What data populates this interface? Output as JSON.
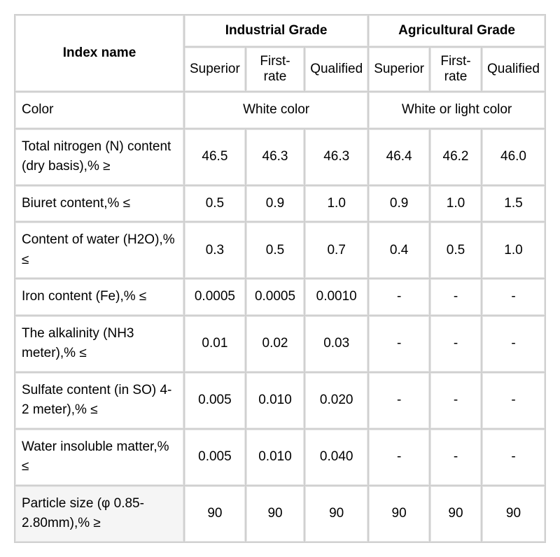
{
  "table": {
    "headers": {
      "indexName": "Index name",
      "industrialGrade": "Industrial Grade",
      "agriculturalGrade": "Agricultural Grade"
    },
    "subheaders": {
      "superior": "Superior",
      "firstRate": "First-rate",
      "qualified": "Qualified"
    },
    "rows": {
      "color": {
        "label": "Color",
        "industrial": "White color",
        "agricultural": "White or light color"
      },
      "nitrogen": {
        "label": "Total nitrogen (N) content (dry basis),% ≥",
        "values": [
          "46.5",
          "46.3",
          "46.3",
          "46.4",
          "46.2",
          "46.0"
        ]
      },
      "biuret": {
        "label": "Biuret content,% ≤",
        "values": [
          "0.5",
          "0.9",
          "1.0",
          "0.9",
          "1.0",
          "1.5"
        ]
      },
      "water": {
        "label": "Content of water (H2O),% ≤",
        "values": [
          "0.3",
          "0.5",
          "0.7",
          "0.4",
          "0.5",
          "1.0"
        ]
      },
      "iron": {
        "label": "Iron content (Fe),% ≤",
        "values": [
          "0.0005",
          "0.0005",
          "0.0010",
          "-",
          "-",
          "-"
        ]
      },
      "alkalinity": {
        "label": "The alkalinity (NH3 meter),% ≤",
        "values": [
          "0.01",
          "0.02",
          "0.03",
          "-",
          "-",
          "-"
        ]
      },
      "sulfate": {
        "label": "Sulfate content (in SO) 4-2 meter),% ≤",
        "values": [
          "0.005",
          "0.010",
          "0.020",
          "-",
          "-",
          "-"
        ]
      },
      "insoluble": {
        "label": "Water insoluble matter,% ≤",
        "values": [
          "0.005",
          "0.010",
          "0.040",
          "-",
          "-",
          "-"
        ]
      },
      "particle": {
        "label": "Particle size (φ 0.85-2.80mm),% ≥",
        "values": [
          "90",
          "90",
          "90",
          "90",
          "90",
          "90"
        ]
      }
    },
    "styling": {
      "background_color": "#ffffff",
      "border_color": "#e8e8e8",
      "separator_color": "#d0d0d0",
      "highlight_color": "#f5f5f5",
      "text_color": "#000000",
      "font_size": 19,
      "header_font_weight": "bold"
    }
  }
}
